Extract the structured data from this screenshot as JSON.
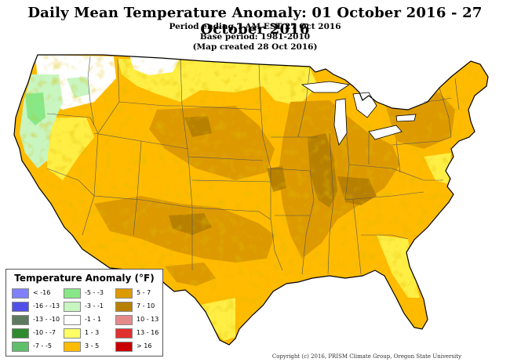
{
  "title": "Daily Mean Temperature Anomaly: 01 October 2016 - 27 October 2016",
  "subtitle_lines": [
    "Period ending 7 AM EST 27 Oct 2016",
    "Base period: 1981-2010",
    "(Map created 28 Oct 2016)"
  ],
  "legend": {
    "title": "Temperature Anomaly (°F)",
    "items": [
      {
        "label": "< -16",
        "color": "#8080ff"
      },
      {
        "label": "-16 - -13",
        "color": "#5050e8"
      },
      {
        "label": "-13 - -10",
        "color": "#5e7a5e"
      },
      {
        "label": "-10 - -7",
        "color": "#2e8b2e"
      },
      {
        "label": "-7 - -5",
        "color": "#5fbf6a"
      },
      {
        "label": "-5 - -3",
        "color": "#88e888"
      },
      {
        "label": "-3 - -1",
        "color": "#c8f5c0"
      },
      {
        "label": "-1 - 1",
        "color": "#ffffff"
      },
      {
        "label": "1 - 3",
        "color": "#ffff66"
      },
      {
        "label": "3 - 5",
        "color": "#ffbb00"
      },
      {
        "label": "5 - 7",
        "color": "#dd9a00"
      },
      {
        "label": "7 - 10",
        "color": "#b88000"
      },
      {
        "label": "10 - 13",
        "color": "#e58a8a"
      },
      {
        "label": "13 - 16",
        "color": "#e03030"
      },
      {
        "label": "> 16",
        "color": "#c80000"
      }
    ]
  },
  "copyright": "Copyright (c) 2016, PRISM Climate Group, Oregon State University",
  "colors": {
    "water": "#ffffff",
    "border": "#000000",
    "state_line": "#444444"
  }
}
